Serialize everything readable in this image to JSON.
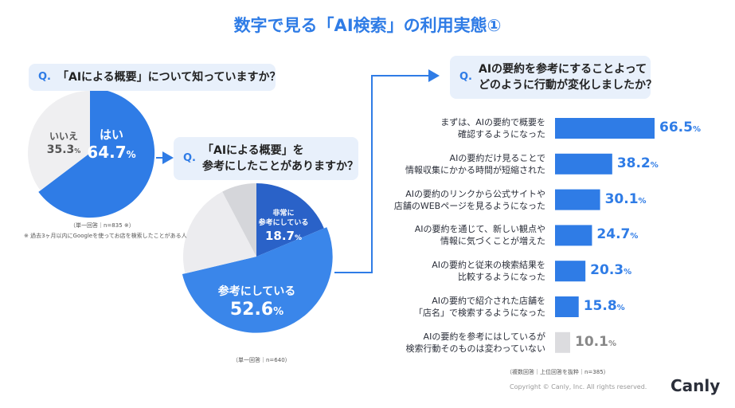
{
  "title": "数字で見る「AI検索」の利用実態①",
  "chart_data": [
    {
      "type": "pie",
      "question_mark": "Q.",
      "question": "「AIによる概要」について知っていますか？",
      "categories": [
        "はい",
        "いいえ"
      ],
      "values": [
        64.7,
        35.3
      ],
      "value_labels": [
        "64.7%",
        "35.3%"
      ],
      "colors": [
        "#2f7ce6",
        "#efeff1"
      ],
      "note": "（単一回答｜n=835 ※）",
      "footnote": "※ 過去3ヶ月以内にGoogleを使ってお店を検索したことがある人"
    },
    {
      "type": "pie",
      "question_mark": "Q.",
      "question": "「AIによる概要」を\n参考にしたことがありますか？",
      "categories": [
        "非常に\n参考にしている",
        "参考にしている",
        null,
        null
      ],
      "values": [
        18.7,
        52.6,
        21,
        7.7
      ],
      "value_labels": [
        "18.7%",
        "52.6%",
        null,
        null
      ],
      "colors": [
        "#2a62c8",
        "#3a86ea",
        "#ececef",
        "#d5d6da"
      ],
      "note": "（単一回答｜n=640）"
    },
    {
      "type": "bar",
      "orientation": "horizontal",
      "question_mark": "Q.",
      "question": "AIの要約を参考にすることよって\nどのように行動が変化しましたか？",
      "categories": [
        "まずは、AIの要約で概要を\n確認するようになった",
        "AIの要約だけ見ることで\n情報収集にかかる時間が短縮された",
        "AIの要約のリンクから公式サイトや\n店舗のWEBページを見るようになった",
        "AIの要約を通じて、新しい観点や\n情報に気づくことが増えた",
        "AIの要約と従来の検索結果を\n比較するようになった",
        "AIの要約で紹介された店舗を\n「店名」で検索するようになった",
        "AIの要約を参考にはしているが\n検索行動そのものは変わっていない"
      ],
      "values": [
        66.5,
        38.2,
        30.1,
        24.7,
        20.3,
        15.8,
        10.1
      ],
      "value_labels": [
        "66.5%",
        "38.2%",
        "30.1%",
        "24.7%",
        "20.3%",
        "15.8%",
        "10.1%"
      ],
      "colors": [
        "#2f7ce6",
        "#2f7ce6",
        "#2f7ce6",
        "#2f7ce6",
        "#2f7ce6",
        "#2f7ce6",
        "#dcdcdf"
      ],
      "note": "（複数回答｜上位回答を抜粋｜n=385）"
    }
  ],
  "footer": {
    "copyright": "Copyright © Canly, Inc. All rights reserved.",
    "logo": "Canly"
  }
}
